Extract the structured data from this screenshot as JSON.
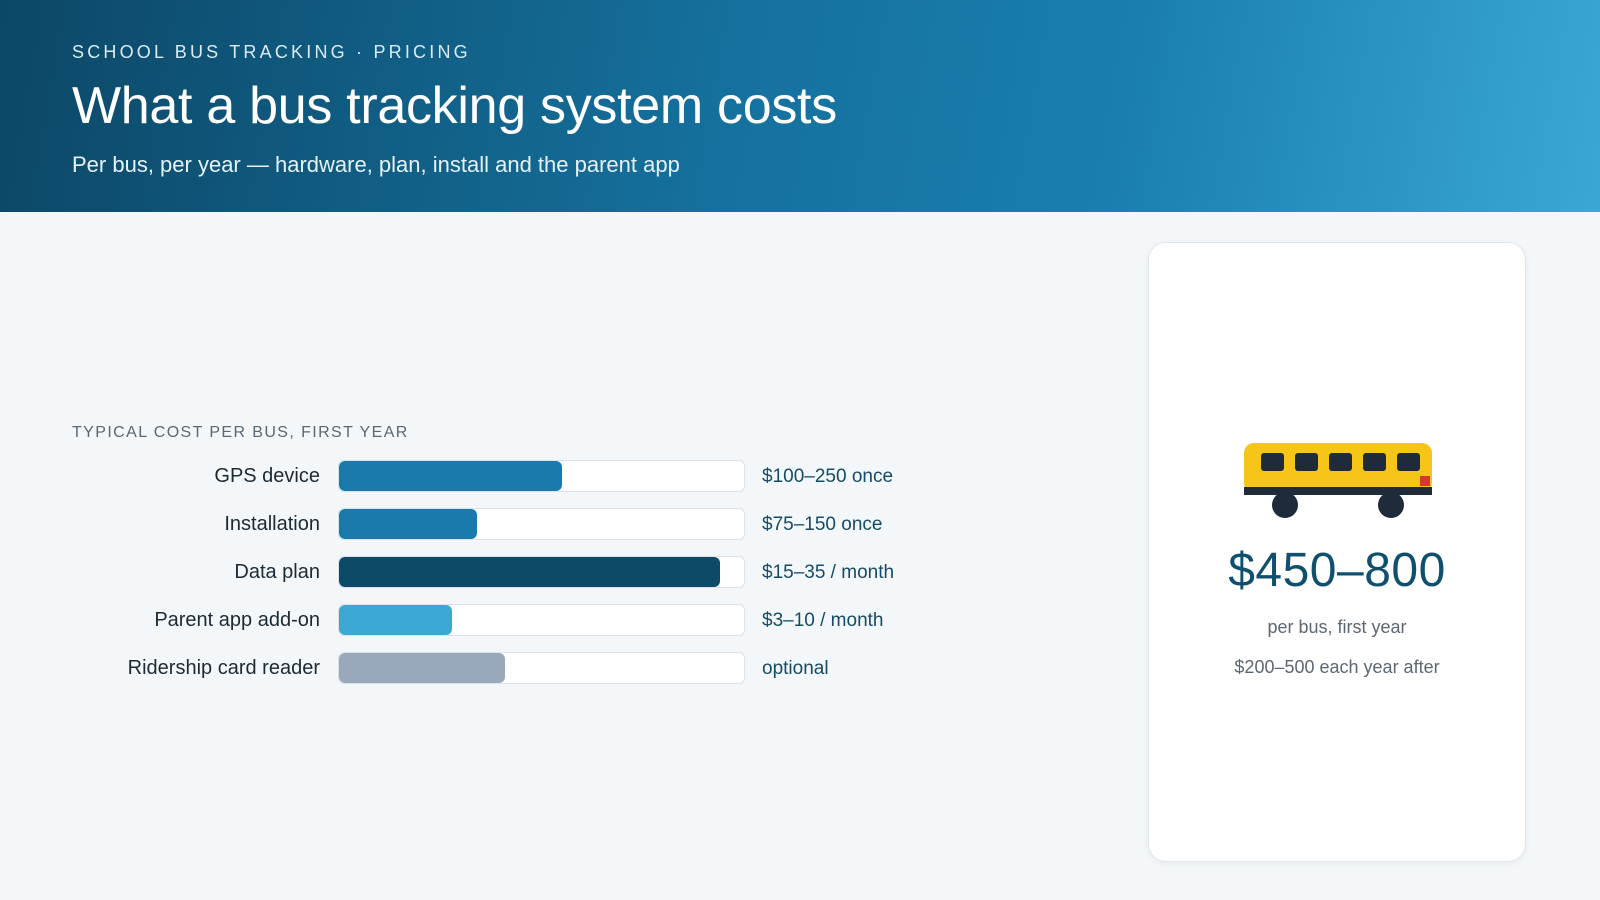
{
  "header": {
    "eyebrow": "SCHOOL BUS TRACKING · PRICING",
    "title": "What a bus tracking system costs",
    "subtitle": "Per bus, per year — hardware, plan, install and the parent app"
  },
  "chart_data": {
    "type": "bar",
    "orientation": "horizontal",
    "title": "TYPICAL COST PER BUS, FIRST YEAR",
    "categories": [
      "GPS device",
      "Installation",
      "Data plan",
      "Parent app add-on",
      "Ridership card reader"
    ],
    "values": [
      0.55,
      0.34,
      0.94,
      0.28,
      0.41
    ],
    "value_labels": [
      "$100–250 once",
      "$75–150 once",
      "$15–35 / month",
      "$3–10 / month",
      "optional"
    ],
    "colors": [
      "#1a7aab",
      "#1a7aab",
      "#0d4a68",
      "#3aa8d3",
      "#9aa8bc"
    ],
    "scale_max": 1.0
  },
  "summary_card": {
    "icon": "school-bus-icon",
    "total": "$450–800",
    "per_label": "per bus, first year",
    "after_label": "$200–500 each year after"
  }
}
